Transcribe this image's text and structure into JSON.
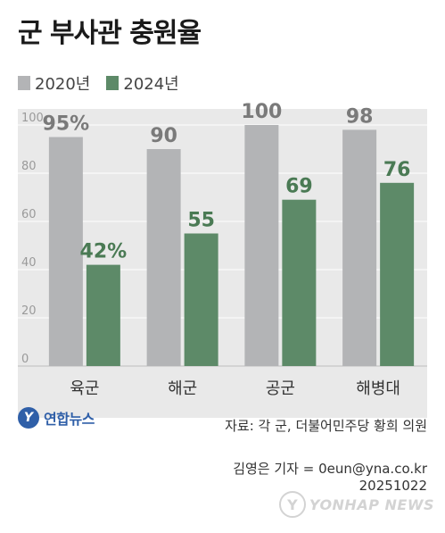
{
  "header": {
    "title": "군 부사관 충원율"
  },
  "legend": {
    "items": [
      {
        "label": "2020년",
        "color": "#b3b4b6"
      },
      {
        "label": "2024년",
        "color": "#5d8a68"
      }
    ]
  },
  "chart_data": {
    "type": "bar",
    "categories": [
      "육군",
      "해군",
      "공군",
      "해병대"
    ],
    "series": [
      {
        "name": "2020년",
        "values": [
          95,
          90,
          100,
          98
        ],
        "labels": [
          "95%",
          "90",
          "100",
          "98"
        ],
        "color": "#b3b4b6",
        "label_color": "#7a7a7a"
      },
      {
        "name": "2024년",
        "values": [
          42,
          55,
          69,
          76
        ],
        "labels": [
          "42%",
          "55",
          "69",
          "76"
        ],
        "color": "#5d8a68",
        "label_color": "#4a7a54"
      }
    ],
    "yticks": [
      0,
      20,
      40,
      60,
      80,
      100
    ],
    "ylim": [
      0,
      100
    ],
    "grid": true,
    "legend_position": "top-left"
  },
  "footer": {
    "logo_text": "연합뉴스",
    "source": "자료: 각 군, 더불어민주당 황희 의원",
    "credit": "김영은 기자 = 0eun@yna.co.kr",
    "date": "20251022",
    "watermark": "YONHAP NEWS"
  }
}
